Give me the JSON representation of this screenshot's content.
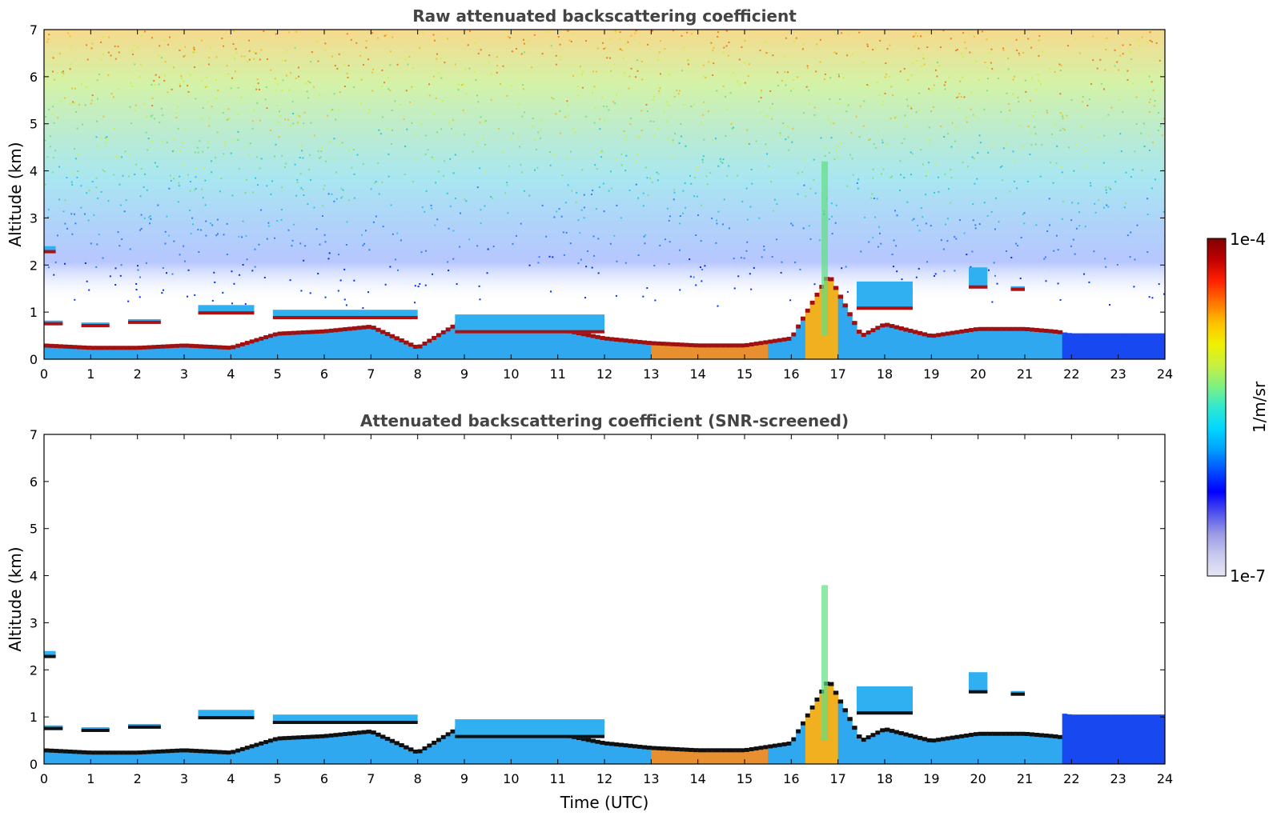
{
  "chart_data": [
    {
      "type": "heatmap",
      "title": "Raw attenuated backscattering coefficient",
      "xlabel": "",
      "ylabel": "Altitude (km)",
      "xlim": [
        0,
        24
      ],
      "ylim": [
        0,
        7
      ],
      "xticks": [
        "0",
        "1",
        "2",
        "3",
        "4",
        "5",
        "6",
        "7",
        "8",
        "9",
        "10",
        "11",
        "12",
        "13",
        "14",
        "15",
        "16",
        "17",
        "18",
        "19",
        "20",
        "21",
        "22",
        "23",
        "24"
      ],
      "yticks": [
        "0",
        "1",
        "2",
        "3",
        "4",
        "5",
        "6",
        "7"
      ],
      "grid": false,
      "noise_field": true,
      "cloud_layers": [
        {
          "x": [
            0.0,
            0.4
          ],
          "base": 0.72,
          "top": 0.82
        },
        {
          "x": [
            0.8,
            1.4
          ],
          "base": 0.68,
          "top": 0.78
        },
        {
          "x": [
            1.8,
            2.5
          ],
          "base": 0.75,
          "top": 0.85
        },
        {
          "x": [
            3.3,
            4.5
          ],
          "base": 0.95,
          "top": 1.15
        },
        {
          "x": [
            4.9,
            8.0
          ],
          "base": 0.85,
          "top": 1.05
        },
        {
          "x": [
            8.8,
            12.0
          ],
          "base": 0.55,
          "top": 0.95
        },
        {
          "x": [
            17.4,
            18.6
          ],
          "base": 1.05,
          "top": 1.65
        },
        {
          "x": [
            19.8,
            20.2
          ],
          "base": 1.5,
          "top": 1.95
        },
        {
          "x": [
            20.7,
            21.0
          ],
          "base": 1.45,
          "top": 1.55
        },
        {
          "x": [
            0.0,
            0.25
          ],
          "base": 2.25,
          "top": 2.4
        }
      ],
      "boundary_layer_top": [
        [
          0,
          0.3
        ],
        [
          1,
          0.25
        ],
        [
          2,
          0.25
        ],
        [
          3,
          0.3
        ],
        [
          4,
          0.25
        ],
        [
          5,
          0.55
        ],
        [
          6,
          0.6
        ],
        [
          7,
          0.7
        ],
        [
          8,
          0.25
        ],
        [
          9,
          0.85
        ],
        [
          10,
          0.75
        ],
        [
          11,
          0.65
        ],
        [
          12,
          0.45
        ],
        [
          13,
          0.35
        ],
        [
          14,
          0.3
        ],
        [
          15,
          0.3
        ],
        [
          16,
          0.45
        ],
        [
          16.8,
          1.8
        ],
        [
          17.5,
          0.5
        ],
        [
          18,
          0.75
        ],
        [
          19,
          0.5
        ],
        [
          20,
          0.65
        ],
        [
          21,
          0.65
        ],
        [
          21.6,
          0.6
        ],
        [
          22,
          0.55
        ],
        [
          24,
          0.55
        ]
      ]
    },
    {
      "type": "heatmap",
      "title": "Attenuated backscattering coefficient (SNR-screened)",
      "xlabel": "Time (UTC)",
      "ylabel": "Altitude (km)",
      "xlim": [
        0,
        24
      ],
      "ylim": [
        0,
        7
      ],
      "xticks": [
        "0",
        "1",
        "2",
        "3",
        "4",
        "5",
        "6",
        "7",
        "8",
        "9",
        "10",
        "11",
        "12",
        "13",
        "14",
        "15",
        "16",
        "17",
        "18",
        "19",
        "20",
        "21",
        "22",
        "23",
        "24"
      ],
      "yticks": [
        "0",
        "1",
        "2",
        "3",
        "4",
        "5",
        "6",
        "7"
      ],
      "grid": false,
      "noise_field": false
    }
  ],
  "colorbar": {
    "label": "1/m/sr",
    "max_label": "1e-4",
    "min_label": "1e-7",
    "scale": "log",
    "range": [
      1e-07,
      0.0001
    ],
    "colors": [
      "#e6e6f5",
      "#c8c8ee",
      "#9a9ae6",
      "#5050ee",
      "#0000ff",
      "#0050ff",
      "#00a0ff",
      "#00d8ff",
      "#30e8d0",
      "#80f080",
      "#c8f040",
      "#f0f000",
      "#ffc000",
      "#ff7000",
      "#ff2000",
      "#c00000",
      "#800000"
    ]
  }
}
